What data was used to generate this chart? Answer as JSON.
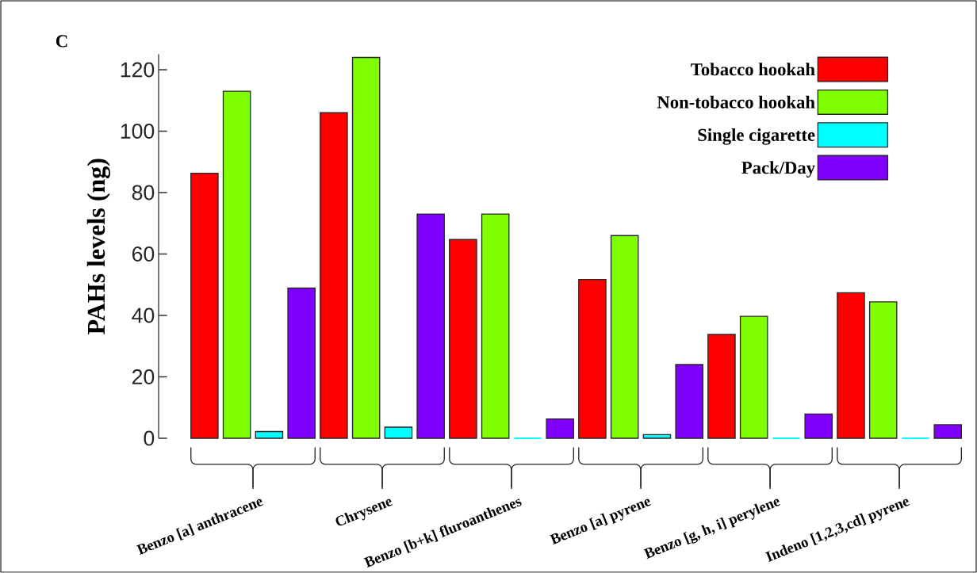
{
  "chart_data": {
    "type": "bar",
    "ylabel": "PAHs levels (ng)",
    "annotations": [
      "C"
    ],
    "categories": [
      "Benzo [a] anthracene",
      "Chrysene",
      "Benzo [b+k] fluroanthenes",
      "Benzo [a] pyrene",
      "Benzo [g, h, i] perylene",
      "Indeno [1,2,3,cd] pyrene"
    ],
    "series": [
      {
        "name": "Tobacco hookah",
        "color": "#ff0000",
        "values": [
          86.3,
          106,
          64.7,
          51.7,
          33.8,
          47.4
        ]
      },
      {
        "name": "Non-tobacco hookah",
        "color": "#80ff00",
        "values": [
          113,
          124,
          73,
          66,
          39.7,
          44.4
        ]
      },
      {
        "name": "Single cigarette",
        "color": "#00ffff",
        "values": [
          2.2,
          3.6,
          0,
          1.2,
          0,
          0
        ]
      },
      {
        "name": "Pack/Day",
        "color": "#8000ff",
        "values": [
          48.9,
          73,
          6.3,
          24,
          7.9,
          4.4
        ]
      }
    ],
    "ylim": [
      0,
      125
    ],
    "yticks": [
      0,
      20,
      40,
      60,
      80,
      100,
      120
    ],
    "legend": "top right",
    "grid": false
  }
}
